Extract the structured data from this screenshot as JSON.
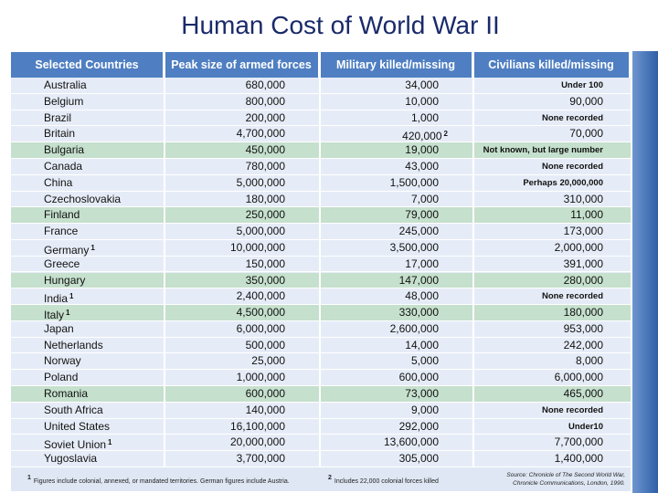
{
  "title": "Human Cost of World War II",
  "table": {
    "header": [
      "Selected Countries",
      "Peak size of armed forces",
      "Military killed/missing",
      "Civilians killed/missing"
    ],
    "rows": [
      [
        "Australia",
        "680,000",
        "34,000",
        "Under 100"
      ],
      [
        "Belgium",
        "800,000",
        "10,000",
        "90,000"
      ],
      [
        "Brazil",
        "200,000",
        "1,000",
        "None recorded"
      ],
      [
        "Britain",
        "4,700,000",
        {
          "text": "420,000",
          "sup": "2"
        },
        "70,000"
      ],
      [
        "Bulgaria",
        "450,000",
        "19,000",
        "Not known, but large number"
      ],
      [
        "Canada",
        "780,000",
        "43,000",
        "None recorded"
      ],
      [
        "China",
        "5,000,000",
        "1,500,000",
        "Perhaps 20,000,000"
      ],
      [
        "Czechoslovakia",
        "180,000",
        "7,000",
        "310,000"
      ],
      [
        "Finland",
        "250,000",
        "79,000",
        "11,000"
      ],
      [
        "France",
        "5,000,000",
        "245,000",
        "173,000"
      ],
      [
        {
          "text": "Germany",
          "sup": "1"
        },
        "10,000,000",
        "3,500,000",
        "2,000,000"
      ],
      [
        "Greece",
        "150,000",
        "17,000",
        "391,000"
      ],
      [
        "Hungary",
        "350,000",
        "147,000",
        "280,000"
      ],
      [
        {
          "text": "India",
          "sup": "1"
        },
        "2,400,000",
        "48,000",
        "None recorded"
      ],
      [
        {
          "text": "Italy",
          "sup": "1"
        },
        "4,500,000",
        "330,000",
        "180,000"
      ],
      [
        "Japan",
        "6,000,000",
        "2,600,000",
        "953,000"
      ],
      [
        "Netherlands",
        "500,000",
        "14,000",
        "242,000"
      ],
      [
        "Norway",
        "25,000",
        "5,000",
        "8,000"
      ],
      [
        "Poland",
        "1,000,000",
        "600,000",
        "6,000,000"
      ],
      [
        "Romania",
        "600,000",
        "73,000",
        "465,000"
      ],
      [
        "South Africa",
        "140,000",
        "9,000",
        "None recorded"
      ],
      [
        "United States",
        "16,100,000",
        "292,000",
        "Under10"
      ],
      [
        {
          "text": "Soviet Union",
          "sup": "1"
        },
        "20,000,000",
        "13,600,000",
        "7,700,000"
      ],
      [
        "Yugoslavia",
        "3,700,000",
        "305,000",
        "1,400,000"
      ]
    ],
    "highlighted_rows": [
      4,
      8,
      12,
      14,
      19
    ],
    "highlight_color": "#c5e0cd"
  },
  "footnotes": [
    {
      "marker": "1",
      "text": "Figures include colonial, annexed, or mandated territories. German figures include Austria."
    },
    {
      "marker": "2",
      "text": "Includes 22,000 colonial forces killed"
    }
  ],
  "source": "Source: Chronicle of The Second World War, Chronicle Communications, London, 1990."
}
